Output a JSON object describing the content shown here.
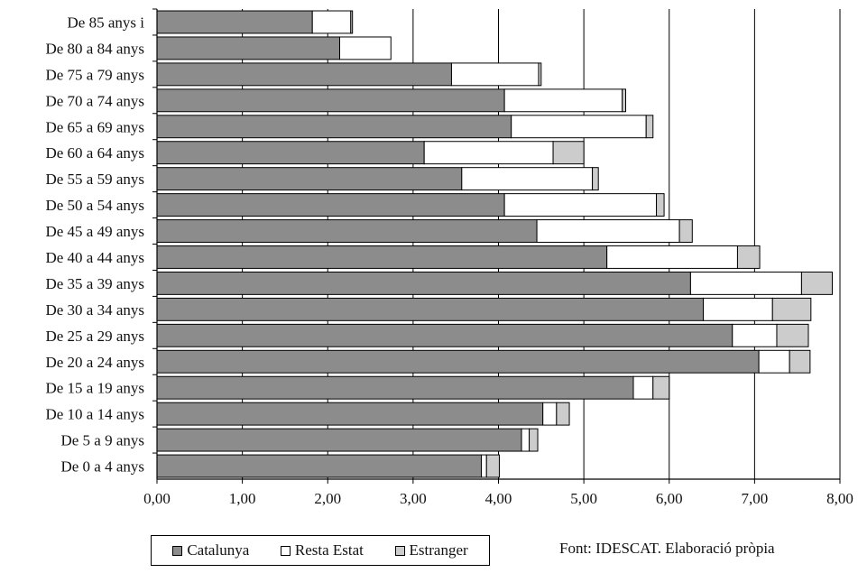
{
  "chart_data": {
    "type": "bar",
    "orientation": "horizontal",
    "stacked": true,
    "categories": [
      "De 85 anys i",
      "De 80 a 84 anys",
      "De 75 a 79 anys",
      "De 70 a 74 anys",
      "De 65 a 69 anys",
      "De 60 a 64 anys",
      "De 55 a 59 anys",
      "De 50 a 54 anys",
      "De 45 a 49 anys",
      "De 40 a 44 anys",
      "De 35 a 39 anys",
      "De 30 a 34 anys",
      "De 25 a 29 anys",
      "De 20 a 24 anys",
      "De 15 a 19 anys",
      "De 10 a 14 anys",
      "De 5 a 9 anys",
      "De 0 a 4 anys"
    ],
    "series": [
      {
        "name": "Catalunya",
        "color": "#8c8c8c",
        "values": [
          1.82,
          2.14,
          3.45,
          4.07,
          4.15,
          3.13,
          3.57,
          4.07,
          4.45,
          5.27,
          6.25,
          6.4,
          6.74,
          7.05,
          5.58,
          4.52,
          4.27,
          3.8
        ]
      },
      {
        "name": "Resta Estat",
        "color": "#ffffff",
        "values": [
          0.45,
          0.6,
          1.02,
          1.38,
          1.58,
          1.51,
          1.53,
          1.78,
          1.67,
          1.53,
          1.3,
          0.81,
          0.52,
          0.36,
          0.23,
          0.16,
          0.09,
          0.06
        ]
      },
      {
        "name": "Estranger",
        "color": "#cccccc",
        "values": [
          0.02,
          0.0,
          0.03,
          0.04,
          0.08,
          0.36,
          0.07,
          0.09,
          0.15,
          0.26,
          0.36,
          0.45,
          0.37,
          0.24,
          0.19,
          0.15,
          0.1,
          0.15
        ]
      }
    ],
    "xlim": [
      0,
      8
    ],
    "xticks": [
      "0,00",
      "1,00",
      "2,00",
      "3,00",
      "4,00",
      "5,00",
      "6,00",
      "7,00",
      "8,00"
    ],
    "xlabel": "",
    "ylabel": "",
    "grid": "vertical",
    "legend_position": "bottom"
  },
  "legend": {
    "items": [
      {
        "label": "Catalunya",
        "color": "#8c8c8c"
      },
      {
        "label": "Resta Estat",
        "color": "#ffffff"
      },
      {
        "label": "Estranger",
        "color": "#cccccc"
      }
    ]
  },
  "source_note": "Font: IDESCAT. Elaboració pròpia"
}
